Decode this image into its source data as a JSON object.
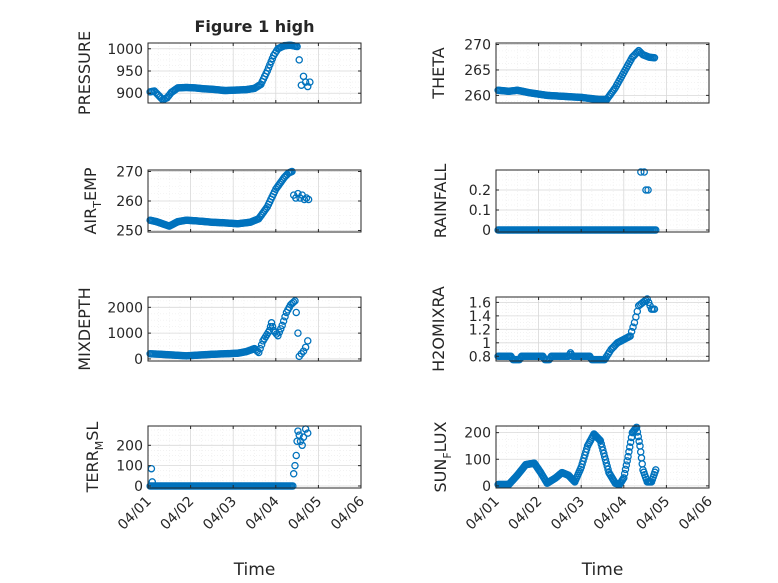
{
  "figure": {
    "title": "Figure 1 high",
    "marker_color": "#0072BD",
    "axis_color": "#262626",
    "grid_color": "#d9d9d9"
  },
  "chart_data": [
    {
      "type": "scatter",
      "id": "pressure",
      "title": "Figure 1 high",
      "ylabel": "PRESSURE",
      "xlabel": "",
      "ylim": [
        878,
        1013
      ],
      "yticks": [
        900,
        950,
        1000
      ],
      "ytick_labels": [
        "900",
        "950",
        "1000"
      ],
      "xlim": [
        0,
        5
      ],
      "xticks": [
        0,
        1,
        2,
        3,
        4,
        5
      ],
      "xtick_labels": [],
      "grid": true,
      "knots": [
        [
          0.05,
          903
        ],
        [
          0.15,
          905
        ],
        [
          0.25,
          895
        ],
        [
          0.35,
          885
        ],
        [
          0.45,
          890
        ],
        [
          0.55,
          902
        ],
        [
          0.7,
          912
        ],
        [
          0.9,
          913
        ],
        [
          1.1,
          912
        ],
        [
          1.3,
          910
        ],
        [
          1.5,
          909
        ],
        [
          1.8,
          906
        ],
        [
          2.05,
          907
        ],
        [
          2.3,
          908
        ],
        [
          2.5,
          911
        ],
        [
          2.65,
          920
        ],
        [
          2.8,
          950
        ],
        [
          2.95,
          985
        ],
        [
          3.05,
          1000
        ],
        [
          3.2,
          1007
        ],
        [
          3.35,
          1008
        ],
        [
          3.5,
          1005
        ]
      ],
      "step": 0.03,
      "extra": [
        [
          3.55,
          975
        ],
        [
          3.6,
          918
        ],
        [
          3.65,
          938
        ],
        [
          3.7,
          925
        ],
        [
          3.75,
          915
        ],
        [
          3.8,
          925
        ]
      ]
    },
    {
      "type": "scatter",
      "id": "theta",
      "title": "",
      "ylabel": "THETA",
      "xlabel": "",
      "ylim": [
        258.5,
        270.3
      ],
      "yticks": [
        260,
        265,
        270
      ],
      "ytick_labels": [
        "260",
        "265",
        "270"
      ],
      "xlim": [
        0,
        5
      ],
      "xticks": [
        0,
        1,
        2,
        3,
        4,
        5
      ],
      "xtick_labels": [],
      "grid": true,
      "knots": [
        [
          0.05,
          261.0
        ],
        [
          0.3,
          260.8
        ],
        [
          0.5,
          261.0
        ],
        [
          0.8,
          260.5
        ],
        [
          1.2,
          260.0
        ],
        [
          1.6,
          259.8
        ],
        [
          2.0,
          259.6
        ],
        [
          2.4,
          259.2
        ],
        [
          2.6,
          259.2
        ],
        [
          2.8,
          261.5
        ],
        [
          3.0,
          264.5
        ],
        [
          3.2,
          267.5
        ],
        [
          3.35,
          268.8
        ],
        [
          3.45,
          268.0
        ],
        [
          3.6,
          267.5
        ],
        [
          3.72,
          267.4
        ]
      ],
      "step": 0.03,
      "extra": []
    },
    {
      "type": "scatter",
      "id": "air_temp",
      "title": "",
      "ylabel": "AIR",
      "ylabel_sub": "T",
      "ylabel_after": "EMP",
      "xlabel": "",
      "ylim": [
        249.5,
        270.5
      ],
      "yticks": [
        250,
        260,
        270
      ],
      "ytick_labels": [
        "250",
        "260",
        "270"
      ],
      "xlim": [
        0,
        5
      ],
      "xticks": [
        0,
        1,
        2,
        3,
        4,
        5
      ],
      "xtick_labels": [],
      "grid": true,
      "knots": [
        [
          0.05,
          253.5
        ],
        [
          0.2,
          253
        ],
        [
          0.4,
          252
        ],
        [
          0.5,
          251.5
        ],
        [
          0.7,
          253
        ],
        [
          0.9,
          253.5
        ],
        [
          1.2,
          253.2
        ],
        [
          1.5,
          252.8
        ],
        [
          1.8,
          252.6
        ],
        [
          2.1,
          252.3
        ],
        [
          2.4,
          252.8
        ],
        [
          2.6,
          254
        ],
        [
          2.8,
          258
        ],
        [
          3.0,
          264
        ],
        [
          3.2,
          268
        ],
        [
          3.3,
          269.5
        ],
        [
          3.38,
          270
        ]
      ],
      "step": 0.03,
      "extra": [
        [
          3.42,
          262
        ],
        [
          3.47,
          261
        ],
        [
          3.52,
          262.5
        ],
        [
          3.57,
          261
        ],
        [
          3.62,
          262
        ],
        [
          3.67,
          260.5
        ],
        [
          3.72,
          261
        ],
        [
          3.77,
          260.5
        ]
      ]
    },
    {
      "type": "scatter",
      "id": "rainfall",
      "title": "",
      "ylabel": "RAINFALL",
      "xlabel": "",
      "ylim": [
        -0.01,
        0.3
      ],
      "yticks": [
        0,
        0.1,
        0.2
      ],
      "ytick_labels": [
        "0",
        "0.1",
        "0.2"
      ],
      "xlim": [
        0,
        5
      ],
      "xticks": [
        0,
        1,
        2,
        3,
        4,
        5
      ],
      "xtick_labels": [],
      "grid": true,
      "knots": [
        [
          0.05,
          0
        ],
        [
          3.75,
          0
        ]
      ],
      "step": 0.03,
      "extra": [
        [
          3.4,
          0.29
        ],
        [
          3.48,
          0.29
        ],
        [
          3.52,
          0.2
        ],
        [
          3.57,
          0.2
        ]
      ]
    },
    {
      "type": "scatter",
      "id": "mixdepth",
      "title": "",
      "ylabel": "MIXDEPTH",
      "xlabel": "",
      "ylim": [
        -80,
        2400
      ],
      "yticks": [
        0,
        1000,
        2000
      ],
      "ytick_labels": [
        "0",
        "1000",
        "2000"
      ],
      "xlim": [
        0,
        5
      ],
      "xticks": [
        0,
        1,
        2,
        3,
        4,
        5
      ],
      "xtick_labels": [],
      "grid": true,
      "knots": [
        [
          0.05,
          200
        ],
        [
          0.3,
          180
        ],
        [
          0.6,
          150
        ],
        [
          0.9,
          120
        ],
        [
          1.2,
          150
        ],
        [
          1.5,
          180
        ],
        [
          1.8,
          200
        ],
        [
          2.1,
          220
        ],
        [
          2.3,
          280
        ],
        [
          2.5,
          400
        ],
        [
          2.6,
          250
        ],
        [
          2.7,
          700
        ],
        [
          2.85,
          1100
        ],
        [
          2.9,
          1400
        ],
        [
          2.95,
          1100
        ],
        [
          3.05,
          900
        ],
        [
          3.15,
          1300
        ],
        [
          3.25,
          1800
        ],
        [
          3.35,
          2100
        ],
        [
          3.45,
          2250
        ]
      ],
      "step": 0.03,
      "extra": [
        [
          3.48,
          1800
        ],
        [
          3.52,
          1000
        ],
        [
          3.55,
          100
        ],
        [
          3.6,
          200
        ],
        [
          3.65,
          300
        ],
        [
          3.7,
          450
        ],
        [
          3.75,
          700
        ]
      ]
    },
    {
      "type": "scatter",
      "id": "h2omixra",
      "title": "",
      "ylabel": "H2OMIXRA",
      "xlabel": "",
      "ylim": [
        0.73,
        1.68
      ],
      "yticks": [
        0.8,
        1,
        1.2,
        1.4,
        1.6
      ],
      "ytick_labels": [
        "0.8",
        "1",
        "1.2",
        "1.4",
        "1.6"
      ],
      "xlim": [
        0,
        5
      ],
      "xticks": [
        0,
        1,
        2,
        3,
        4,
        5
      ],
      "xtick_labels": [],
      "grid": true,
      "knots": [
        [
          0.05,
          0.8
        ],
        [
          0.35,
          0.8
        ],
        [
          0.4,
          0.75
        ],
        [
          0.55,
          0.75
        ],
        [
          0.6,
          0.8
        ],
        [
          1.1,
          0.8
        ],
        [
          1.15,
          0.75
        ],
        [
          1.25,
          0.75
        ],
        [
          1.3,
          0.8
        ],
        [
          1.7,
          0.8
        ],
        [
          1.75,
          0.85
        ],
        [
          1.8,
          0.8
        ],
        [
          2.2,
          0.8
        ],
        [
          2.25,
          0.75
        ],
        [
          2.55,
          0.75
        ],
        [
          2.6,
          0.8
        ],
        [
          2.7,
          0.9
        ],
        [
          2.85,
          1.0
        ],
        [
          3.0,
          1.05
        ],
        [
          3.15,
          1.1
        ],
        [
          3.25,
          1.3
        ],
        [
          3.35,
          1.55
        ],
        [
          3.45,
          1.6
        ],
        [
          3.55,
          1.65
        ],
        [
          3.65,
          1.5
        ],
        [
          3.72,
          1.5
        ]
      ],
      "step": 0.03,
      "extra": []
    },
    {
      "type": "scatter",
      "id": "terr_msl",
      "title": "",
      "ylabel": "TERR",
      "ylabel_sub": "M",
      "ylabel_after": "SL",
      "xlabel": "Time",
      "ylim": [
        -10,
        295
      ],
      "yticks": [
        0,
        100,
        200
      ],
      "ytick_labels": [
        "0",
        "100",
        "200"
      ],
      "xlim": [
        0,
        5
      ],
      "xticks": [
        0,
        1,
        2,
        3,
        4,
        5
      ],
      "xtick_labels": [
        "04/01",
        "04/02",
        "04/03",
        "04/04",
        "04/05",
        "04/06"
      ],
      "grid": true,
      "knots": [
        [
          0.05,
          0
        ],
        [
          3.4,
          0
        ]
      ],
      "step": 0.03,
      "extra": [
        [
          0.08,
          85
        ],
        [
          0.1,
          20
        ],
        [
          3.42,
          60
        ],
        [
          3.45,
          100
        ],
        [
          3.48,
          150
        ],
        [
          3.5,
          220
        ],
        [
          3.52,
          270
        ],
        [
          3.55,
          250
        ],
        [
          3.58,
          220
        ],
        [
          3.62,
          200
        ],
        [
          3.65,
          240
        ],
        [
          3.7,
          280
        ],
        [
          3.75,
          260
        ]
      ]
    },
    {
      "type": "scatter",
      "id": "sun_flux",
      "title": "",
      "ylabel": "SUN",
      "ylabel_sub": "F",
      "ylabel_after": "LUX",
      "xlabel": "Time",
      "ylim": [
        -8,
        225
      ],
      "yticks": [
        0,
        100,
        200
      ],
      "ytick_labels": [
        "0",
        "100",
        "200"
      ],
      "xlim": [
        0,
        5
      ],
      "xticks": [
        0,
        1,
        2,
        3,
        4,
        5
      ],
      "xtick_labels": [
        "04/01",
        "04/02",
        "04/03",
        "04/04",
        "04/05",
        "04/06"
      ],
      "grid": true,
      "knots": [
        [
          0.05,
          5
        ],
        [
          0.3,
          5
        ],
        [
          0.5,
          40
        ],
        [
          0.7,
          80
        ],
        [
          0.9,
          85
        ],
        [
          1.05,
          50
        ],
        [
          1.2,
          10
        ],
        [
          1.4,
          30
        ],
        [
          1.55,
          50
        ],
        [
          1.7,
          40
        ],
        [
          1.85,
          15
        ],
        [
          2.0,
          70
        ],
        [
          2.15,
          150
        ],
        [
          2.3,
          195
        ],
        [
          2.45,
          170
        ],
        [
          2.55,
          110
        ],
        [
          2.65,
          50
        ],
        [
          2.8,
          10
        ],
        [
          2.9,
          5
        ],
        [
          3.0,
          30
        ],
        [
          3.1,
          110
        ],
        [
          3.2,
          200
        ],
        [
          3.3,
          220
        ],
        [
          3.38,
          150
        ],
        [
          3.45,
          60
        ],
        [
          3.55,
          15
        ],
        [
          3.65,
          15
        ],
        [
          3.75,
          60
        ]
      ],
      "step": 0.02,
      "extra": []
    }
  ]
}
